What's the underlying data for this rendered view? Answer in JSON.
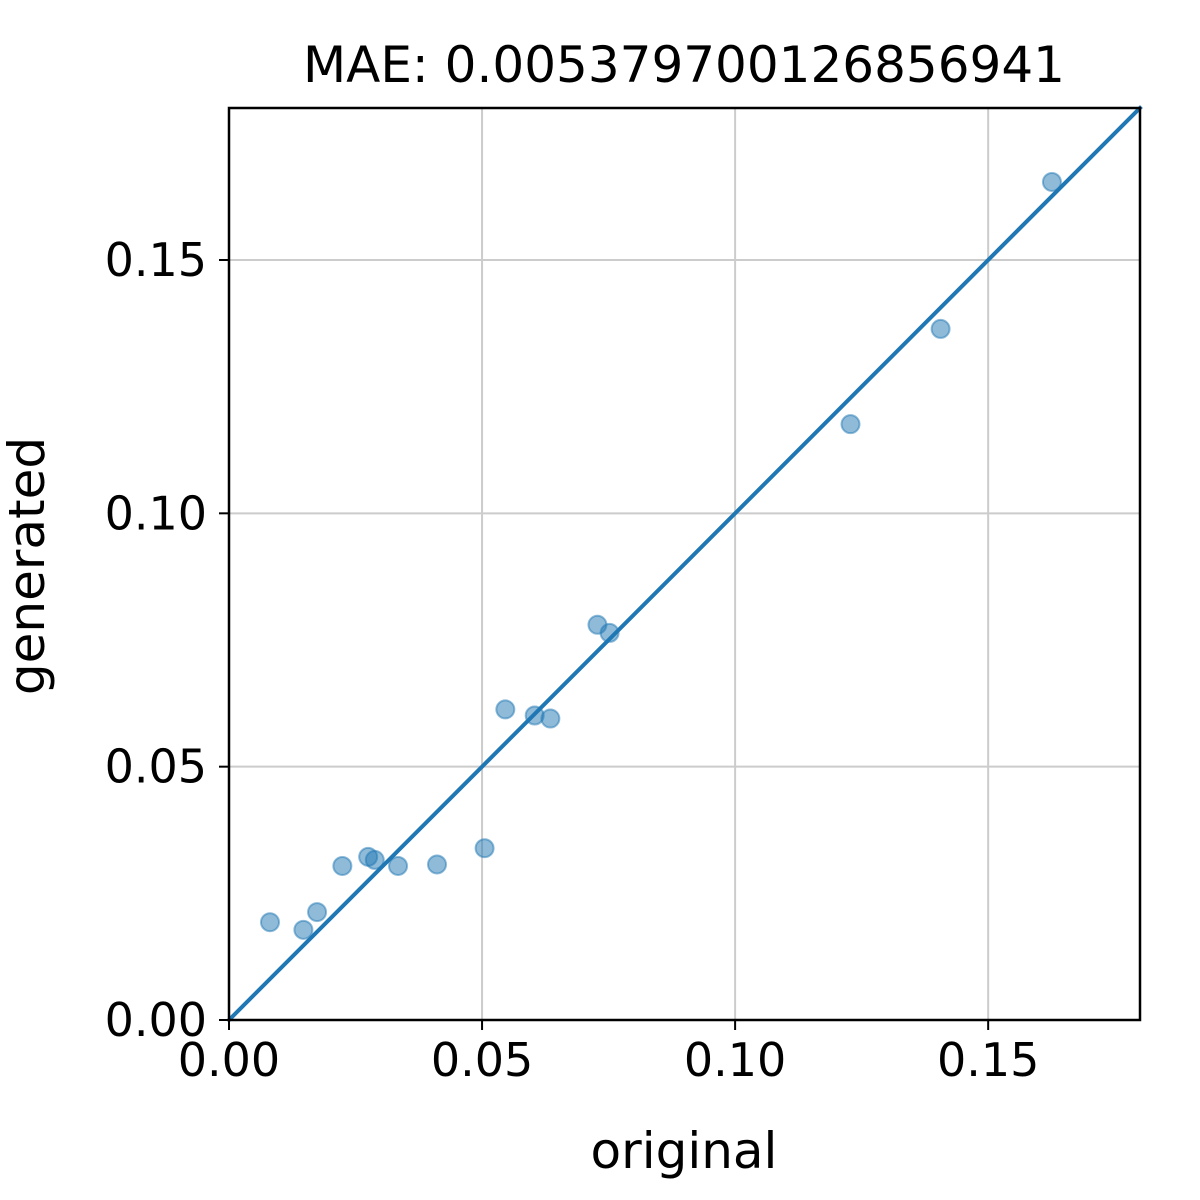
{
  "chart_data": {
    "type": "scatter",
    "title": "MAE: 0.005379700126856941",
    "xlabel": "original",
    "ylabel": "generated",
    "xlim": [
      0,
      0.18
    ],
    "ylim": [
      0,
      0.18
    ],
    "xticks": [
      {
        "value": 0.0,
        "label": "0.00"
      },
      {
        "value": 0.05,
        "label": "0.05"
      },
      {
        "value": 0.1,
        "label": "0.10"
      },
      {
        "value": 0.15,
        "label": "0.15"
      }
    ],
    "yticks": [
      {
        "value": 0.0,
        "label": "0.00"
      },
      {
        "value": 0.05,
        "label": "0.05"
      },
      {
        "value": 0.1,
        "label": "0.10"
      },
      {
        "value": 0.15,
        "label": "0.15"
      }
    ],
    "grid": true,
    "legend": "none",
    "colors": {
      "points": "#1f77b4",
      "line": "#1f77b4",
      "grid": "#cccccc"
    },
    "points": [
      {
        "x": 0.0081,
        "y": 0.0193
      },
      {
        "x": 0.0147,
        "y": 0.0178
      },
      {
        "x": 0.0174,
        "y": 0.0213
      },
      {
        "x": 0.0224,
        "y": 0.0304
      },
      {
        "x": 0.0275,
        "y": 0.0322
      },
      {
        "x": 0.0288,
        "y": 0.0316
      },
      {
        "x": 0.0334,
        "y": 0.0304
      },
      {
        "x": 0.0411,
        "y": 0.0307
      },
      {
        "x": 0.0505,
        "y": 0.0339
      },
      {
        "x": 0.0546,
        "y": 0.0613
      },
      {
        "x": 0.0604,
        "y": 0.0601
      },
      {
        "x": 0.0635,
        "y": 0.0595
      },
      {
        "x": 0.0728,
        "y": 0.078
      },
      {
        "x": 0.0752,
        "y": 0.0764
      },
      {
        "x": 0.1228,
        "y": 0.1176
      },
      {
        "x": 0.1406,
        "y": 0.1364
      },
      {
        "x": 0.1626,
        "y": 0.1654
      }
    ],
    "reference_line": {
      "from": [
        0,
        0
      ],
      "to": [
        0.18,
        0.18
      ]
    }
  }
}
